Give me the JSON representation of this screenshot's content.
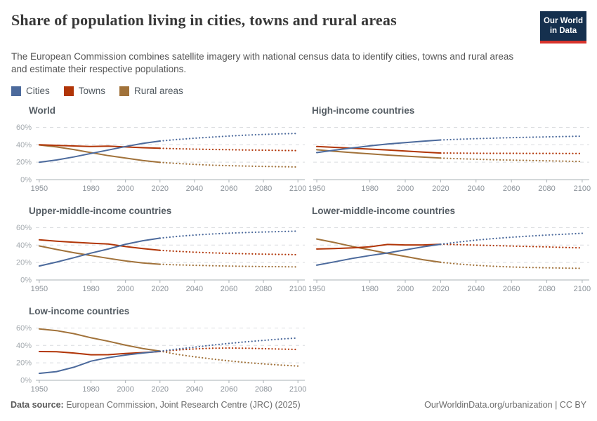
{
  "header": {
    "title": "Share of population living in cities, towns and rural areas",
    "subtitle": "The European Commission combines satellite imagery with national census data to identify cities, towns and rural areas and estimate their respective populations.",
    "logo": {
      "line1": "Our World",
      "line2": "in Data",
      "bg_color": "#15304e",
      "accent_color": "#d7322b"
    }
  },
  "legend": {
    "items": [
      {
        "key": "cities",
        "label": "Cities",
        "color": "#4C6A9C"
      },
      {
        "key": "towns",
        "label": "Towns",
        "color": "#B13507"
      },
      {
        "key": "rural",
        "label": "Rural areas",
        "color": "#A1723A"
      }
    ]
  },
  "chart_data": {
    "type": "line",
    "unit": "%",
    "x_range": [
      1948,
      2104
    ],
    "y_range": [
      0,
      66
    ],
    "x_ticks": [
      1950,
      1980,
      2000,
      2020,
      2040,
      2060,
      2080,
      2100
    ],
    "y_ticks": [
      0,
      20,
      40,
      60
    ],
    "hist_years": [
      1950,
      1960,
      1970,
      1980,
      1990,
      2000,
      2010,
      2020
    ],
    "proj_years": [
      2020,
      2030,
      2040,
      2050,
      2060,
      2070,
      2080,
      2090,
      2100
    ],
    "style_hint": "solid = historical to 2020, dotted = projection to 2100; dashed horizontal gridlines; legend top",
    "charts": [
      {
        "title": "World",
        "show_y_labels": true,
        "series": [
          {
            "key": "cities",
            "name": "Cities",
            "historical": [
              20,
              22.5,
              26,
              30,
              34,
              38,
              41.5,
              44.3
            ],
            "projection": [
              44.3,
              46,
              47.5,
              48.8,
              50,
              51,
              51.8,
              52.5,
              53
            ]
          },
          {
            "key": "towns",
            "name": "Towns",
            "historical": [
              40,
              39.3,
              38.6,
              38,
              38.4,
              37.5,
              36.6,
              36
            ],
            "projection": [
              36,
              35.4,
              35,
              34.6,
              34.3,
              34,
              33.8,
              33.5,
              33.3
            ]
          },
          {
            "key": "rural",
            "name": "Rural areas",
            "historical": [
              39.8,
              37.5,
              34.5,
              31,
              27.5,
              24.7,
              22,
              19.8
            ],
            "projection": [
              19.8,
              18.5,
              17.5,
              16.6,
              16,
              15.5,
              15.1,
              14.8,
              14.5
            ]
          }
        ]
      },
      {
        "title": "High-income countries",
        "show_y_labels": false,
        "series": [
          {
            "key": "cities",
            "name": "Cities",
            "historical": [
              31,
              33.8,
              36.3,
              38.7,
              40.8,
              42.5,
              44,
              45.5
            ],
            "projection": [
              45.5,
              46.3,
              47,
              47.6,
              48.1,
              48.6,
              49,
              49.4,
              49.8
            ]
          },
          {
            "key": "towns",
            "name": "Towns",
            "historical": [
              38,
              37,
              36,
              35,
              34,
              32.8,
              31.6,
              30.5
            ],
            "projection": [
              30.5,
              30.4,
              30.3,
              30.2,
              30.2,
              30.1,
              30.1,
              30,
              30
            ]
          },
          {
            "key": "rural",
            "name": "Rural areas",
            "historical": [
              34.3,
              32.5,
              31,
              29.5,
              28.2,
              27,
              25.8,
              24.7
            ],
            "projection": [
              24.7,
              24,
              23.4,
              22.8,
              22.4,
              22,
              21.6,
              21.2,
              20.8
            ]
          }
        ]
      },
      {
        "title": "Upper-middle-income countries",
        "show_y_labels": true,
        "series": [
          {
            "key": "cities",
            "name": "Cities",
            "historical": [
              16,
              20.5,
              25.5,
              30.8,
              35.5,
              41,
              45,
              48
            ],
            "projection": [
              48,
              50,
              51.5,
              52.7,
              53.7,
              54.4,
              55,
              55.5,
              56
            ]
          },
          {
            "key": "towns",
            "name": "Towns",
            "historical": [
              46,
              44.5,
              43.2,
              42.2,
              41.3,
              38.3,
              36,
              34
            ],
            "projection": [
              34,
              32.8,
              31.9,
              31.1,
              30.5,
              30,
              29.6,
              29.3,
              29
            ]
          },
          {
            "key": "rural",
            "name": "Rural areas",
            "historical": [
              39,
              35,
              31.3,
              28,
              24.8,
              21.8,
              19.5,
              18
            ],
            "projection": [
              18,
              17.3,
              16.8,
              16.3,
              15.9,
              15.6,
              15.4,
              15.2,
              15
            ]
          }
        ]
      },
      {
        "title": "Lower-middle-income countries",
        "show_y_labels": false,
        "series": [
          {
            "key": "cities",
            "name": "Cities",
            "historical": [
              17,
              20.8,
              24.7,
              28,
              31,
              34.5,
              38,
              41
            ],
            "projection": [
              41,
              43.5,
              45.7,
              47.5,
              49,
              50.3,
              51.5,
              52.5,
              53.5
            ]
          },
          {
            "key": "towns",
            "name": "Towns",
            "historical": [
              35.5,
              36,
              36.8,
              38,
              40.7,
              40.2,
              40.2,
              41
            ],
            "projection": [
              41,
              40.5,
              40,
              39.4,
              38.9,
              38.4,
              37.9,
              37.3,
              36.8
            ]
          },
          {
            "key": "rural",
            "name": "Rural areas",
            "historical": [
              47,
              43,
              38.5,
              34.5,
              30.5,
              27,
              23.3,
              20.3
            ],
            "projection": [
              20.3,
              18.3,
              16.8,
              15.7,
              14.9,
              14.3,
              13.9,
              13.6,
              13.4
            ]
          }
        ]
      },
      {
        "title": "Low-income countries",
        "show_y_labels": true,
        "series": [
          {
            "key": "cities",
            "name": "Cities",
            "historical": [
              8,
              10,
              15,
              22,
              26,
              29,
              31.3,
              33.3
            ],
            "projection": [
              33.3,
              35.8,
              38,
              40.3,
              42.3,
              44.2,
              45.8,
              47.3,
              48.5
            ]
          },
          {
            "key": "towns",
            "name": "Towns",
            "historical": [
              33,
              32.8,
              31.3,
              29.3,
              29.4,
              30.8,
              31.8,
              33
            ],
            "projection": [
              33,
              34.8,
              36,
              36.8,
              37,
              36.8,
              36.3,
              35.8,
              35.3
            ]
          },
          {
            "key": "rural",
            "name": "Rural areas",
            "historical": [
              59,
              57,
              53.5,
              48.8,
              44.8,
              40.3,
              36.5,
              33.5
            ],
            "projection": [
              33.5,
              29.8,
              27,
              24.5,
              22.3,
              20.4,
              18.8,
              17.5,
              16.3
            ]
          }
        ]
      }
    ],
    "axis_colors": {
      "gridline": "#d9dcdf",
      "axis_line": "#a9b0b5",
      "y_label": "#a3a9ae",
      "x_label": "#8c939a"
    }
  },
  "footer": {
    "source_label": "Data source:",
    "source_text": " European Commission, Joint Research Centre (JRC) (2025)",
    "link_text": "OurWorldinData.org/urbanization | CC BY"
  }
}
